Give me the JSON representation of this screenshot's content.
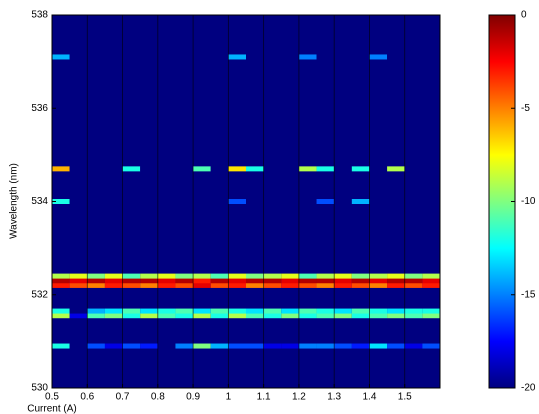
{
  "chart_data": {
    "type": "heatmap",
    "xlabel": "Current (A)",
    "ylabel": "Wavelength (nm)",
    "x": [
      0.525,
      0.575,
      0.625,
      0.675,
      0.725,
      0.775,
      0.825,
      0.875,
      0.925,
      0.975,
      1.025,
      1.075,
      1.125,
      1.175,
      1.225,
      1.275,
      1.325,
      1.375,
      1.425,
      1.475,
      1.525,
      1.575
    ],
    "y": [
      530.9,
      531.55,
      531.65,
      532.2,
      532.3,
      532.4,
      534.0,
      534.7,
      537.1
    ],
    "z": [
      [
        -12,
        -20,
        -16,
        -18,
        -16,
        -17,
        -20,
        -15,
        -10,
        -14,
        -16,
        -16,
        -18,
        -18,
        -15,
        -15,
        -16,
        -17,
        -13,
        -16,
        -18,
        -16
      ],
      [
        -9,
        -18,
        -11,
        -10,
        -12,
        -9,
        -11,
        -12,
        -9,
        -12,
        -9,
        -11,
        -12,
        -10,
        -12,
        -11,
        -10,
        -12,
        -11,
        -10,
        -11,
        -10
      ],
      [
        -12,
        -20,
        -14,
        -13,
        -11,
        -13,
        -12,
        -11,
        -13,
        -11,
        -12,
        -13,
        -11,
        -13,
        -11,
        -12,
        -13,
        -11,
        -12,
        -13,
        -12,
        -12
      ],
      [
        -3,
        -4,
        -5,
        -3,
        -4,
        -5,
        -3,
        -4,
        -2,
        -4,
        -3,
        -5,
        -4,
        -3,
        -4,
        -5,
        -3,
        -4,
        -5,
        -3,
        -4,
        -3
      ],
      [
        -1,
        -2,
        -1,
        -2,
        -1,
        -1,
        -2,
        -1,
        -3,
        -1,
        -2,
        -1,
        -1,
        -2,
        -1,
        -1,
        -2,
        -1,
        -2,
        -1,
        -1,
        -2
      ],
      [
        -9,
        -8,
        -10,
        -8,
        -11,
        -9,
        -8,
        -10,
        -9,
        -11,
        -8,
        -10,
        -9,
        -8,
        -11,
        -9,
        -8,
        -10,
        -9,
        -8,
        -10,
        -9
      ],
      [
        -12,
        -20,
        -20,
        -20,
        -20,
        -20,
        -20,
        -20,
        -20,
        -20,
        -16,
        -20,
        -20,
        -20,
        -20,
        -16,
        -20,
        -14,
        -20,
        -20,
        -20,
        -20
      ],
      [
        -6,
        -20,
        -20,
        -20,
        -12,
        -20,
        -20,
        -20,
        -11,
        -20,
        -7,
        -12,
        -20,
        -20,
        -9,
        -12,
        -20,
        -12,
        -20,
        -9,
        -20,
        -20
      ],
      [
        -14,
        -20,
        -20,
        -20,
        -20,
        -20,
        -20,
        -20,
        -20,
        -20,
        -14,
        -20,
        -20,
        -20,
        -15,
        -20,
        -20,
        -20,
        -15,
        -20,
        -20,
        -20
      ]
    ],
    "xlim": [
      0.5,
      1.6
    ],
    "ylim": [
      530,
      538
    ],
    "xticks": [
      0.5,
      0.6,
      0.7,
      0.8,
      0.9,
      1,
      1.1,
      1.2,
      1.3,
      1.4,
      1.5
    ],
    "yticks": [
      530,
      532,
      534,
      536,
      538
    ],
    "clim": [
      -20,
      0
    ],
    "cticks": [
      0,
      -5,
      -10,
      -15,
      -20
    ],
    "colormap": "jet",
    "grid": true
  }
}
